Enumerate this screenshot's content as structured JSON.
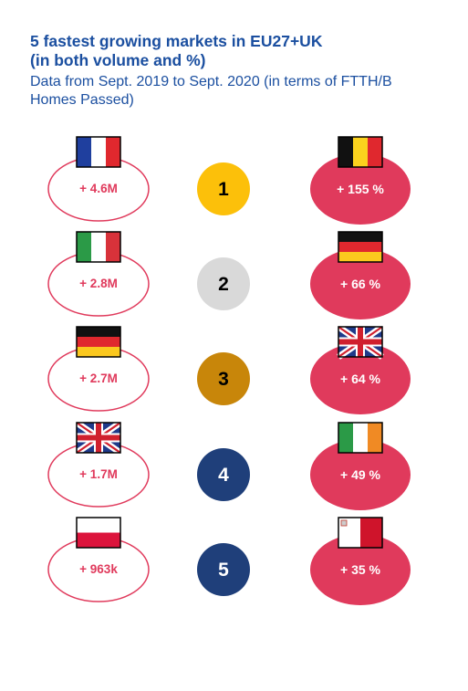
{
  "header": {
    "title_line1": "5 fastest growing markets in EU27+UK",
    "title_line2": "(in both volume and %)",
    "subtitle_line1": "Data from Sept. 2019 to Sept. 2020 (in terms of FTTH/B",
    "subtitle_line2": "Homes Passed)"
  },
  "colors": {
    "title": "#1b4fa0",
    "oval_outline": "#e03a5c",
    "oval_fill": "#e03a5c",
    "rank_gold": "#fcc00a",
    "rank_silver": "#d9d9d9",
    "rank_bronze": "#c8860a",
    "rank_blue": "#1f3f7a"
  },
  "chart_data": {
    "type": "table",
    "columns": [
      "volume_market",
      "volume_growth",
      "rank",
      "percent_market",
      "percent_growth"
    ],
    "rows": [
      {
        "rank": "1",
        "volume_flag": "flag-france",
        "volume_label": "+ 4.6M",
        "percent_flag": "flag-belgium",
        "percent_label": "+ 155 %"
      },
      {
        "rank": "2",
        "volume_flag": "flag-italy",
        "volume_label": "+ 2.8M",
        "percent_flag": "flag-germany",
        "percent_label": "+ 66 %"
      },
      {
        "rank": "3",
        "volume_flag": "flag-germany",
        "volume_label": "+ 2.7M",
        "percent_flag": "flag-uk",
        "percent_label": "+ 64 %"
      },
      {
        "rank": "4",
        "volume_flag": "flag-uk",
        "volume_label": "+ 1.7M",
        "percent_flag": "flag-ireland",
        "percent_label": "+ 49 %"
      },
      {
        "rank": "5",
        "volume_flag": "flag-poland",
        "volume_label": "+ 963k",
        "percent_flag": "flag-malta",
        "percent_label": "+ 35 %"
      }
    ]
  }
}
